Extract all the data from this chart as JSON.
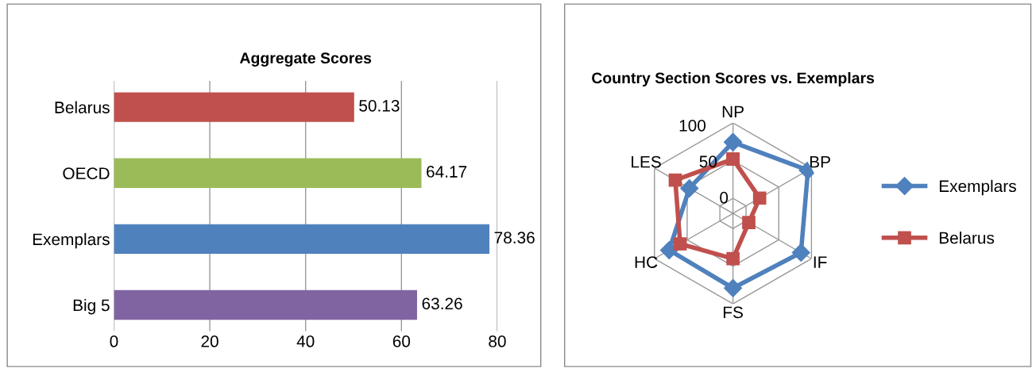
{
  "chart_data": [
    {
      "type": "bar",
      "title": "Aggregate Scores",
      "orientation": "horizontal",
      "categories": [
        "Belarus",
        "OECD",
        "Exemplars",
        "Big 5"
      ],
      "values": [
        50.13,
        64.17,
        78.36,
        63.26
      ],
      "colors": [
        "#c0504d",
        "#9bbb59",
        "#4f81bd",
        "#8064a2"
      ],
      "xlim": [
        0,
        80
      ],
      "xticks": [
        0,
        20,
        40,
        60,
        80
      ],
      "grid": "x",
      "data_labels": true
    },
    {
      "type": "radar",
      "title": "Country Section Scores vs. Exemplars",
      "categories": [
        "NP",
        "BP",
        "IF",
        "FS",
        "HC",
        "LES"
      ],
      "ylim": [
        -20,
        100
      ],
      "yticks": [
        0,
        50,
        100
      ],
      "grid": true,
      "legend": "right",
      "series": [
        {
          "name": "Exemplars",
          "color": "#4f81bd",
          "marker": "diamond",
          "values": [
            74.5,
            94.6,
            84,
            79,
            77.5,
            46.6
          ]
        },
        {
          "name": "Belarus",
          "color": "#c0504d",
          "marker": "square",
          "values": [
            52,
            20.8,
            4.2,
            40,
            60.7,
            68.2
          ]
        }
      ]
    }
  ]
}
